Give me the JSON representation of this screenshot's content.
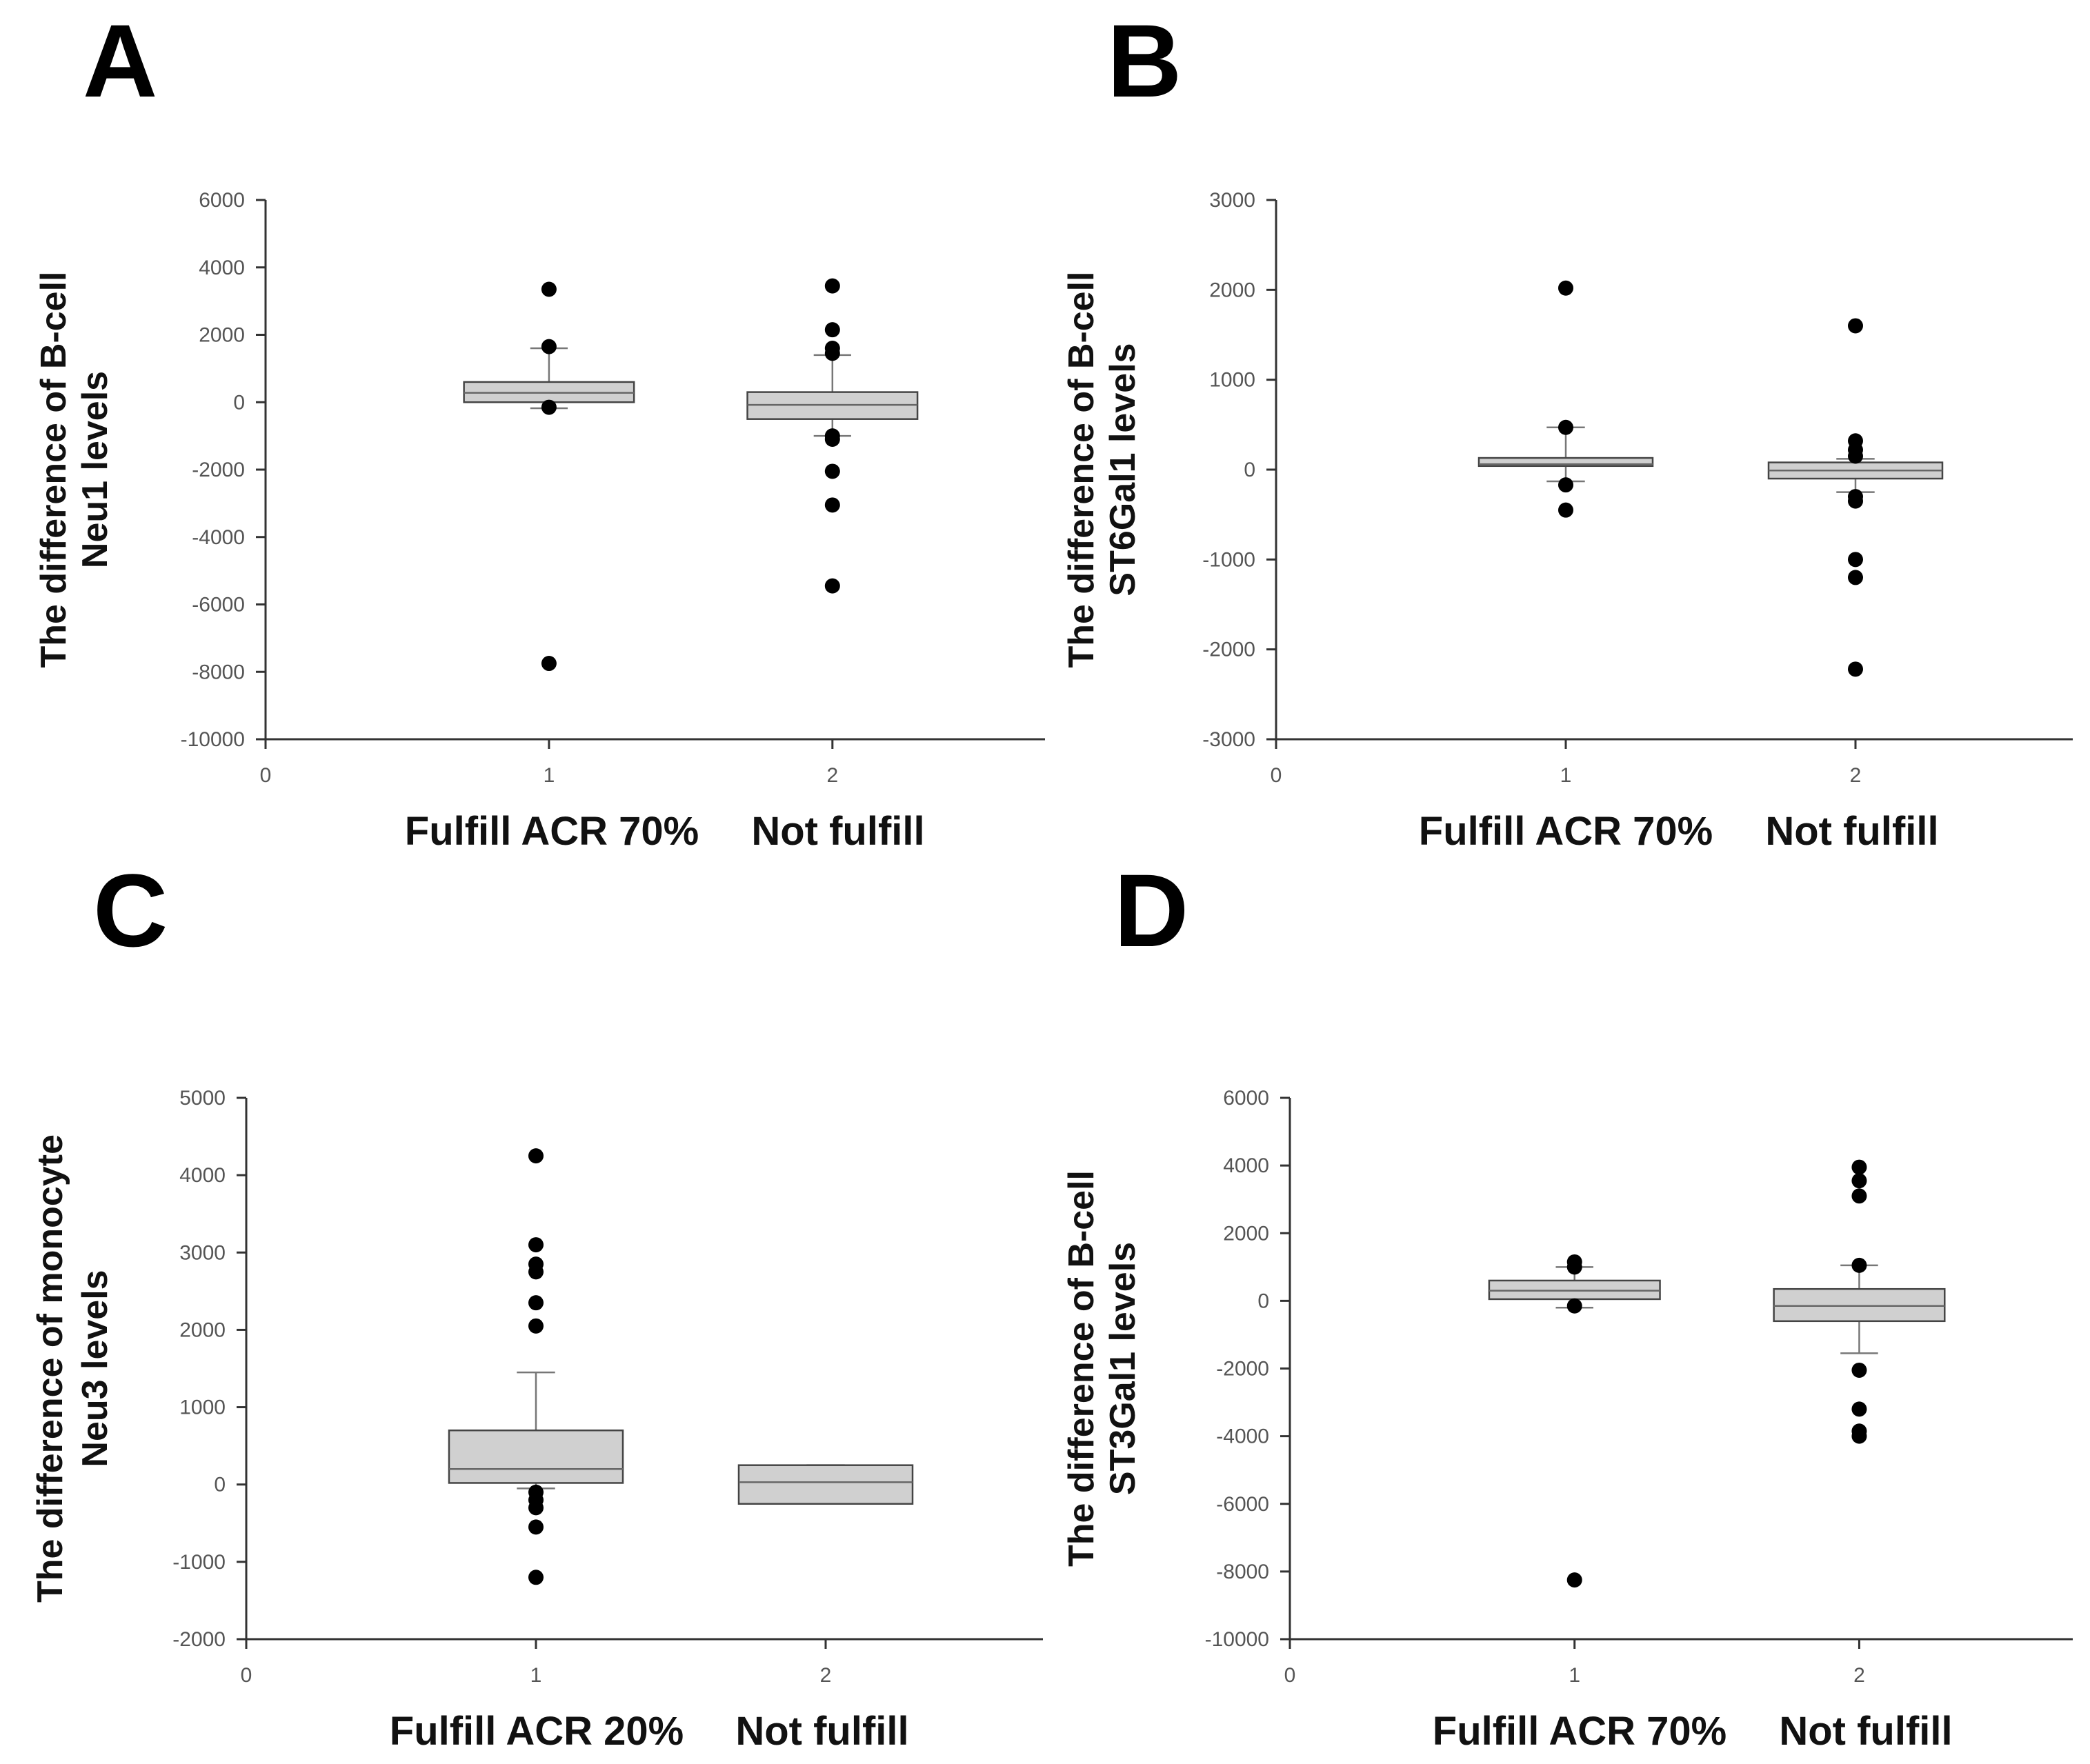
{
  "chart_data": [
    {
      "type": "box",
      "panel": "A",
      "ylabel": [
        "The difference of B-cell",
        "Neu1 levels"
      ],
      "xlabel_groups": [
        "Fulfill ACR 70%",
        "Not fulfill"
      ],
      "xticks": [
        "0",
        "1",
        "2"
      ],
      "xlim": [
        0,
        2.75
      ],
      "ylim": [
        -10000,
        6000
      ],
      "yticks": [
        6000,
        4000,
        2000,
        0,
        -2000,
        -4000,
        -6000,
        -8000,
        -10000
      ],
      "boxes": [
        {
          "x": 1,
          "q1": 0,
          "median": 280,
          "q3": 600,
          "whisker_low": -180,
          "whisker_high": 1600,
          "outliers": [
            3350,
            1650,
            -150,
            -7750
          ]
        },
        {
          "x": 2,
          "q1": -500,
          "median": -80,
          "q3": 300,
          "whisker_low": -1000,
          "whisker_high": 1400,
          "outliers": [
            3450,
            2150,
            1600,
            1450,
            -1000,
            -1100,
            -2050,
            -3050,
            -5450
          ]
        }
      ]
    },
    {
      "type": "box",
      "panel": "B",
      "ylabel": [
        "The difference of B-cell",
        "ST6Gal1 levels"
      ],
      "xlabel_groups": [
        "Fulfill ACR 70%",
        "Not fulfill"
      ],
      "xticks": [
        "0",
        "1",
        "2"
      ],
      "xlim": [
        0,
        2.75
      ],
      "ylim": [
        -3000,
        3000
      ],
      "yticks": [
        3000,
        2000,
        1000,
        0,
        -1000,
        -2000,
        -3000
      ],
      "boxes": [
        {
          "x": 1,
          "q1": 40,
          "median": 60,
          "q3": 130,
          "whisker_low": -130,
          "whisker_high": 470,
          "outliers": [
            2020,
            470,
            -170,
            -450
          ]
        },
        {
          "x": 2,
          "q1": -100,
          "median": -10,
          "q3": 80,
          "whisker_low": -250,
          "whisker_high": 120,
          "outliers": [
            1600,
            320,
            220,
            150,
            -300,
            -350,
            -1000,
            -1200,
            -2220
          ]
        }
      ]
    },
    {
      "type": "box",
      "panel": "C",
      "ylabel": [
        "The difference of monocyte",
        "Neu3 levels"
      ],
      "xlabel_groups": [
        "Fulfill ACR 20%",
        "Not fulfill"
      ],
      "xticks": [
        "0",
        "1",
        "2"
      ],
      "xlim": [
        0,
        2.75
      ],
      "ylim": [
        -2000,
        5000
      ],
      "yticks": [
        5000,
        4000,
        3000,
        2000,
        1000,
        0,
        -1000,
        -2000
      ],
      "boxes": [
        {
          "x": 1,
          "q1": 20,
          "median": 200,
          "q3": 700,
          "whisker_low": -50,
          "whisker_high": 1450,
          "outliers": [
            4250,
            3100,
            2850,
            2750,
            2350,
            2050,
            -100,
            -200,
            -300,
            -550,
            -1200
          ]
        },
        {
          "x": 2,
          "q1": -250,
          "median": 30,
          "q3": 250,
          "whisker_low": -250,
          "whisker_high": 250,
          "outliers": []
        }
      ]
    },
    {
      "type": "box",
      "panel": "D",
      "ylabel": [
        "The difference of B-cell",
        "ST3Gal1 levels"
      ],
      "xlabel_groups": [
        "Fulfill ACR 70%",
        "Not fulfill"
      ],
      "xticks": [
        "0",
        "1",
        "2"
      ],
      "xlim": [
        0,
        2.75
      ],
      "ylim": [
        -10000,
        6000
      ],
      "yticks": [
        6000,
        4000,
        2000,
        0,
        -2000,
        -4000,
        -6000,
        -8000,
        -10000
      ],
      "boxes": [
        {
          "x": 1,
          "q1": 50,
          "median": 300,
          "q3": 600,
          "whisker_low": -200,
          "whisker_high": 1000,
          "outliers": [
            1150,
            1000,
            -150,
            -8250
          ]
        },
        {
          "x": 2,
          "q1": -600,
          "median": -150,
          "q3": 350,
          "whisker_low": -1550,
          "whisker_high": 1050,
          "outliers": [
            3950,
            3550,
            3100,
            1050,
            -2050,
            -3200,
            -3850,
            -4000
          ]
        }
      ]
    }
  ]
}
